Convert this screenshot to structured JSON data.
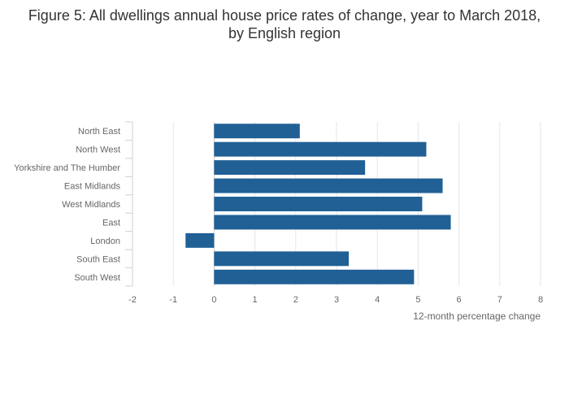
{
  "chart_data": {
    "type": "bar",
    "orientation": "horizontal",
    "title": "Figure 5: All dwellings annual house price rates of change, year to March 2018, by English region",
    "xlabel": "12-month percentage change",
    "ylabel": "",
    "xlim": [
      -2,
      8
    ],
    "xticks": [
      "-2",
      "-1",
      "0",
      "1",
      "2",
      "3",
      "4",
      "5",
      "6",
      "7",
      "8"
    ],
    "grid": true,
    "bar_color": "#206095",
    "categories": [
      "North East",
      "North West",
      "Yorkshire and The Humber",
      "East Midlands",
      "West Midlands",
      "East",
      "London",
      "South East",
      "South West"
    ],
    "values": [
      2.1,
      5.2,
      3.7,
      5.6,
      5.1,
      5.8,
      -0.7,
      3.3,
      4.9
    ]
  }
}
